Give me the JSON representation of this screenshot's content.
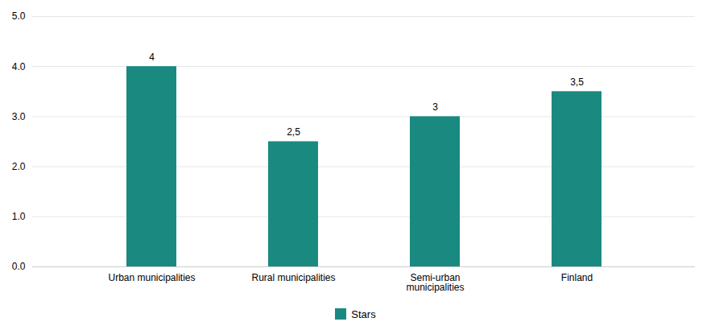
{
  "chart_data": {
    "type": "bar",
    "categories": [
      "Urban municipalities",
      "Rural municipalities",
      "Semi-urban\nmunicipalities",
      "Finland"
    ],
    "series": [
      {
        "name": "Stars",
        "color": "#1a8a80",
        "values": [
          4.0,
          2.5,
          3.0,
          3.5
        ],
        "value_labels": [
          "4",
          "2,5",
          "3",
          "3,5"
        ]
      }
    ],
    "ylim": [
      0,
      5
    ],
    "yticks": [
      0,
      1,
      2,
      3,
      4,
      5
    ],
    "grid": true,
    "legend": "bottom",
    "data_labels": true
  }
}
